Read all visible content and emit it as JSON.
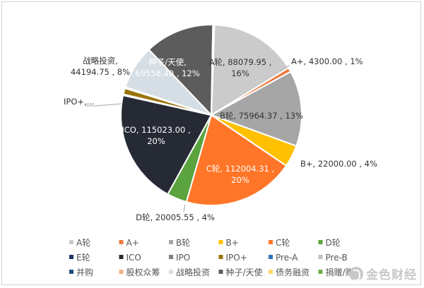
{
  "chart_data": {
    "type": "pie",
    "title": "",
    "slices": [
      {
        "name": "A轮",
        "value": 88079.95,
        "percent": "16%",
        "label": "A轮, 88079.95 ,\n16%",
        "color": "#cbcbcb"
      },
      {
        "name": "A+",
        "value": 4300.0,
        "percent": "1%",
        "label": "A+, 4300.00 , 1%",
        "color": "#ec7a3c"
      },
      {
        "name": "B轮",
        "value": 75964.37,
        "percent": "13%",
        "label": "B轮, 75964.37 , 13%",
        "color": "#a6a6a6"
      },
      {
        "name": "B+",
        "value": 22000.0,
        "percent": "4%",
        "label": "B+, 22000.00 , 4%",
        "color": "#ffc000"
      },
      {
        "name": "C轮",
        "value": 112004.31,
        "percent": "20%",
        "label": "C轮, 112004.31 ,\n20%",
        "color": "#ff7628"
      },
      {
        "name": "D轮",
        "value": 20005.55,
        "percent": "4%",
        "label": "D轮, 20005.55 , 4%",
        "color": "#5aa33e"
      },
      {
        "name": "ICO",
        "value": 115023.0,
        "percent": "20%",
        "label": "ICO, 115023.00 ,\n20%",
        "color": "#262a35"
      },
      {
        "name": "IPO+",
        "value": 0,
        "percent": "",
        "label": "IPO+,...",
        "color": "#9a7407"
      },
      {
        "name": "战略投资",
        "value": 44194.75,
        "percent": "8%",
        "label": "战略投资,\n44194.75 , 8%",
        "color": "#d6dee5"
      },
      {
        "name": "种子/天使",
        "value": 69558.4,
        "percent": "12%",
        "label": "种子/天使,\n69558.40 , 12%",
        "color": "#5c5c5c"
      }
    ],
    "legend": {
      "placement": "bottom",
      "items": [
        {
          "name": "A轮",
          "color": "#cbcbcb"
        },
        {
          "name": "A+",
          "color": "#ec7a3c"
        },
        {
          "name": "B轮",
          "color": "#a6a6a6"
        },
        {
          "name": "B+",
          "color": "#ffc000"
        },
        {
          "name": "C轮",
          "color": "#ff7628"
        },
        {
          "name": "D轮",
          "color": "#5aa33e"
        },
        {
          "name": "E轮",
          "color": "#1f3864"
        },
        {
          "name": "ICO",
          "color": "#262a35"
        },
        {
          "name": "IPO",
          "color": "#7f7f7f"
        },
        {
          "name": "IPO+",
          "color": "#9a7407"
        },
        {
          "name": "Pre-A",
          "color": "#2e75b6"
        },
        {
          "name": "Pre-B",
          "color": "#c0c0c0"
        },
        {
          "name": "并购",
          "color": "#1f4e79"
        },
        {
          "name": "股权众筹",
          "color": "#f4b183"
        },
        {
          "name": "战略投资",
          "color": "#d6dee5"
        },
        {
          "name": "种子/天使",
          "color": "#5c5c5c"
        },
        {
          "name": "债务融资",
          "color": "#ffd966"
        },
        {
          "name": "捐赠/赠",
          "color": "#70ad47"
        }
      ]
    }
  },
  "watermark": {
    "text": "金色财经"
  }
}
